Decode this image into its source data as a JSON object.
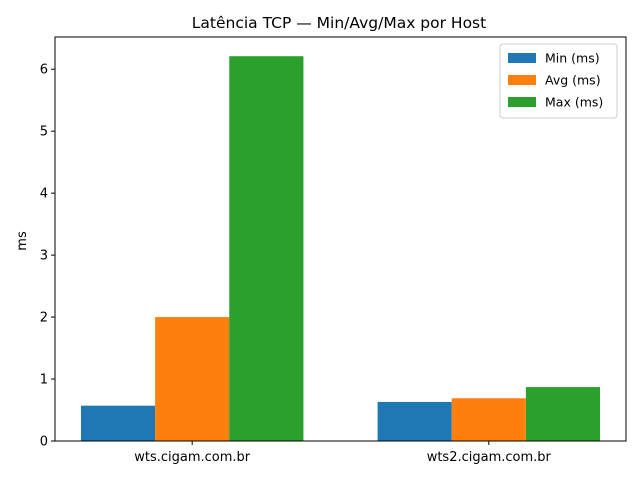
{
  "chart_data": {
    "type": "bar",
    "title": "Latência TCP — Min/Avg/Max por Host",
    "xlabel": "",
    "ylabel": "ms",
    "categories": [
      "wts.cigam.com.br",
      "wts2.cigam.com.br"
    ],
    "series": [
      {
        "name": "Min (ms)",
        "values": [
          0.57,
          0.63
        ],
        "color": "#1f77b4"
      },
      {
        "name": "Avg (ms)",
        "values": [
          2.0,
          0.69
        ],
        "color": "#ff7f0e"
      },
      {
        "name": "Max (ms)",
        "values": [
          6.21,
          0.87
        ],
        "color": "#2ca02c"
      }
    ],
    "ylim": [
      0,
      6.52
    ],
    "yticks": [
      "0",
      "1",
      "2",
      "3",
      "4",
      "5",
      "6"
    ],
    "grid": false,
    "legend_position": "top-right"
  }
}
